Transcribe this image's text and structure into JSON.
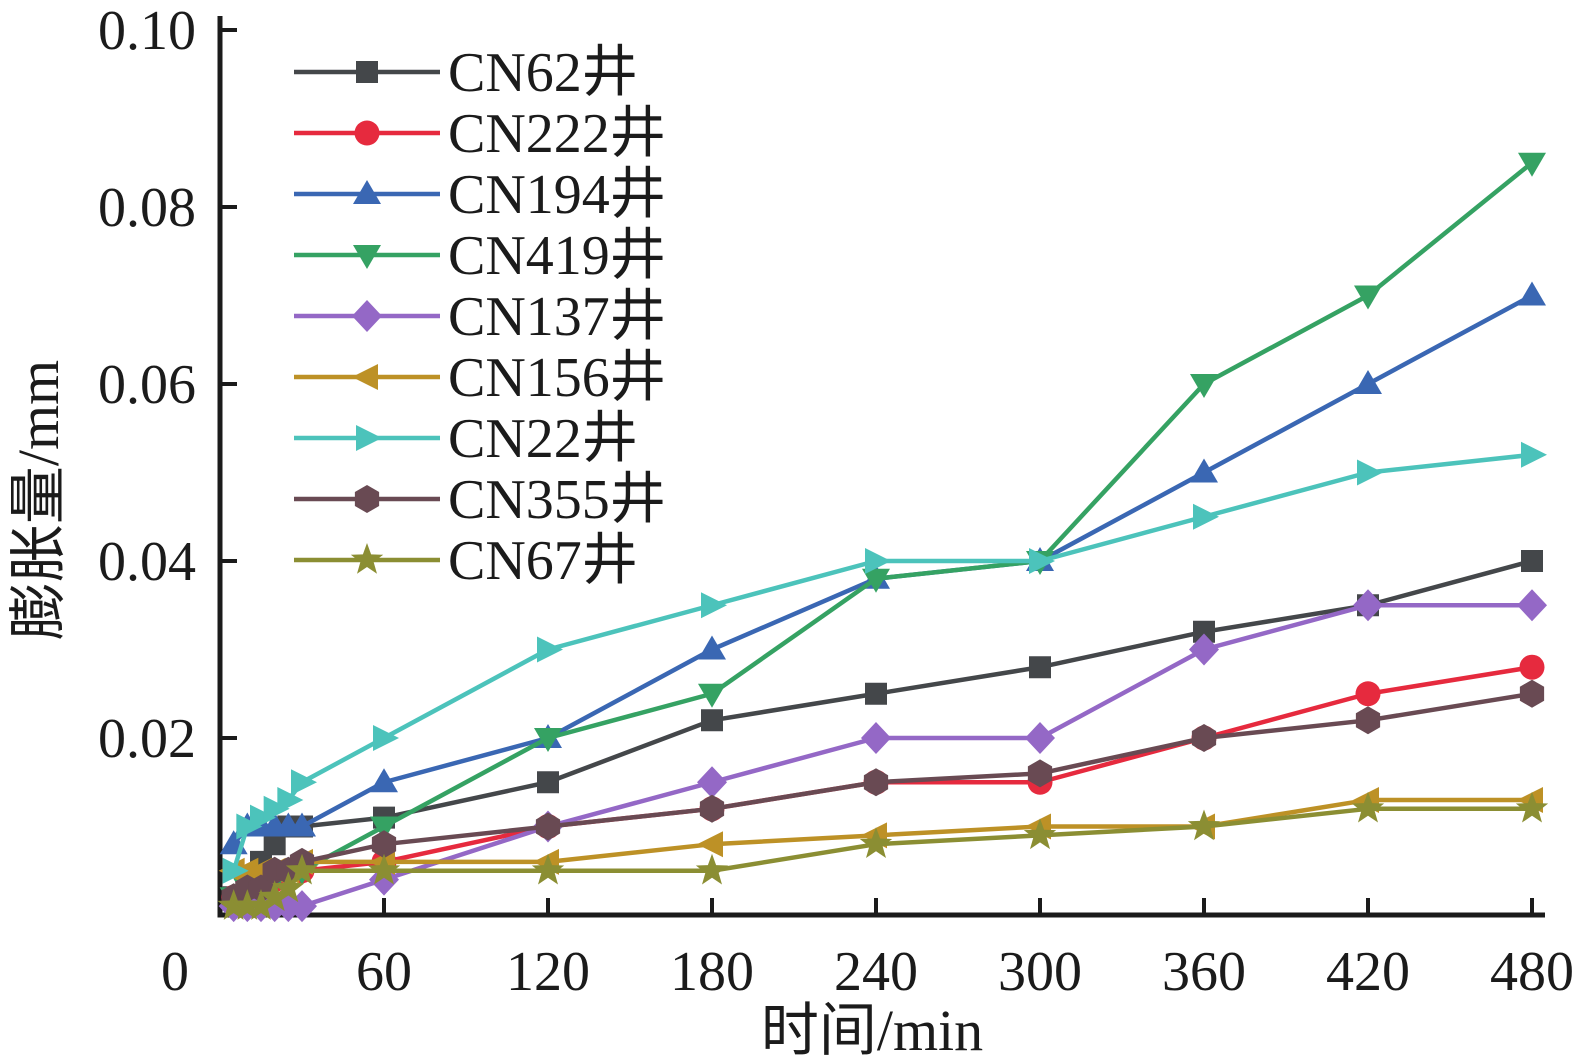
{
  "chart_data": {
    "type": "line",
    "title": "",
    "xlabel": "时间/min",
    "ylabel": "膨胀量/mm",
    "xlim": [
      0,
      480
    ],
    "ylim": [
      0,
      0.1
    ],
    "grid": false,
    "legend_position": "upper-left",
    "axis_color": "#1b1b1b",
    "x": [
      5,
      10,
      15,
      20,
      25,
      30,
      60,
      120,
      180,
      240,
      300,
      360,
      420,
      480
    ],
    "xticks": {
      "values": [
        0,
        60,
        120,
        180,
        240,
        300,
        360,
        420,
        480
      ],
      "labels": [
        "0",
        "60",
        "120",
        "180",
        "240",
        "300",
        "360",
        "420",
        "480"
      ]
    },
    "yticks": {
      "values": [
        0.02,
        0.04,
        0.06,
        0.08,
        0.1
      ],
      "labels": [
        "0.02",
        "0.04",
        "0.06",
        "0.08",
        "0.10"
      ]
    },
    "series": [
      {
        "name": "CN62井",
        "marker": "square",
        "color": "#44474a",
        "values": [
          0.002,
          0.004,
          0.006,
          0.008,
          0.01,
          0.01,
          0.011,
          0.015,
          0.022,
          0.025,
          0.028,
          0.032,
          0.035,
          0.04
        ]
      },
      {
        "name": "CN222井",
        "marker": "circle",
        "color": "#e62a3e",
        "values": [
          0.002,
          0.003,
          0.004,
          0.004,
          0.005,
          0.005,
          0.006,
          0.01,
          0.012,
          0.015,
          0.015,
          0.02,
          0.025,
          0.028
        ]
      },
      {
        "name": "CN194井",
        "marker": "triangle-up",
        "color": "#3a67b3",
        "values": [
          0.008,
          0.01,
          0.01,
          0.01,
          0.01,
          0.01,
          0.015,
          0.02,
          0.03,
          0.038,
          0.04,
          0.05,
          0.06,
          0.07
        ]
      },
      {
        "name": "CN419井",
        "marker": "triangle-down",
        "color": "#35a263",
        "values": [
          0.002,
          0.003,
          0.003,
          0.004,
          0.005,
          0.005,
          0.01,
          0.02,
          0.025,
          0.038,
          0.04,
          0.06,
          0.07,
          0.085
        ]
      },
      {
        "name": "CN137井",
        "marker": "diamond",
        "color": "#9468c6",
        "values": [
          0.001,
          0.001,
          0.001,
          0.001,
          0.001,
          0.001,
          0.004,
          0.01,
          0.015,
          0.02,
          0.02,
          0.03,
          0.035,
          0.035
        ]
      },
      {
        "name": "CN156井",
        "marker": "triangle-left",
        "color": "#bd9126",
        "values": [
          0.005,
          0.005,
          0.005,
          0.005,
          0.005,
          0.006,
          0.006,
          0.006,
          0.008,
          0.009,
          0.01,
          0.01,
          0.013,
          0.013
        ]
      },
      {
        "name": "CN22井",
        "marker": "triangle-right",
        "color": "#4cc3bb",
        "values": [
          0.005,
          0.01,
          0.011,
          0.012,
          0.013,
          0.015,
          0.02,
          0.03,
          0.035,
          0.04,
          0.04,
          0.045,
          0.05,
          0.052
        ]
      },
      {
        "name": "CN355井",
        "marker": "hexagon",
        "color": "#694a53",
        "values": [
          0.002,
          0.003,
          0.003,
          0.005,
          0.005,
          0.006,
          0.008,
          0.01,
          0.012,
          0.015,
          0.016,
          0.02,
          0.022,
          0.025
        ]
      },
      {
        "name": "CN67井",
        "marker": "star",
        "color": "#8b8e33",
        "values": [
          0.001,
          0.001,
          0.001,
          0.002,
          0.003,
          0.005,
          0.005,
          0.005,
          0.005,
          0.008,
          0.009,
          0.01,
          0.012,
          0.012
        ]
      }
    ]
  }
}
